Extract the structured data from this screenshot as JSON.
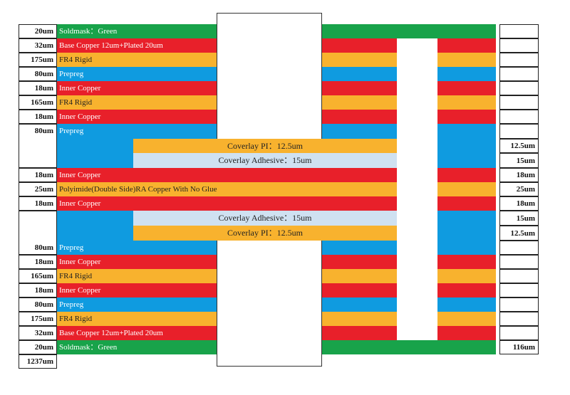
{
  "colors": {
    "soldmask": "#18a34a",
    "copper": "#e8202a",
    "fr4": "#f8b22e",
    "prepreg": "#0f9be0",
    "adhesive": "#cfe1f1"
  },
  "layers": [
    {
      "kind": "soldmask",
      "thickness": "20um",
      "label": "Soldmask：Green"
    },
    {
      "kind": "copper",
      "thickness": "32um",
      "label": "Base Copper 12um+Plated 20um"
    },
    {
      "kind": "fr4",
      "thickness": "175um",
      "label": "FR4 Rigid"
    },
    {
      "kind": "prepreg",
      "thickness": "80um",
      "label": "Prepreg"
    },
    {
      "kind": "copper",
      "thickness": "18um",
      "label": "Inner Copper"
    },
    {
      "kind": "fr4",
      "thickness": "165um",
      "label": "FR4 Rigid"
    },
    {
      "kind": "copper",
      "thickness": "18um",
      "label": "Inner Copper"
    },
    {
      "kind": "prepreg",
      "thickness": "80um",
      "label": "Prepreg"
    },
    {
      "kind": "copper",
      "thickness": "18um",
      "label": "Inner Copper"
    },
    {
      "kind": "fr4",
      "thickness": "25um",
      "label": "Polyimide(Double Side)RA Copper With No Glue"
    },
    {
      "kind": "copper",
      "thickness": "18um",
      "label": "Inner Copper"
    },
    {
      "kind": "prepreg",
      "thickness": "80um",
      "label": "Prepreg"
    },
    {
      "kind": "copper",
      "thickness": "18um",
      "label": "Inner Copper"
    },
    {
      "kind": "fr4",
      "thickness": "165um",
      "label": "FR4 Rigid"
    },
    {
      "kind": "copper",
      "thickness": "18um",
      "label": "Inner Copper"
    },
    {
      "kind": "prepreg",
      "thickness": "80um",
      "label": "Prepreg"
    },
    {
      "kind": "fr4",
      "thickness": "175um",
      "label": "FR4 Rigid"
    },
    {
      "kind": "copper",
      "thickness": "32um",
      "label": "Base Copper 12um+Plated 20um"
    },
    {
      "kind": "soldmask",
      "thickness": "20um",
      "label": "Soldmask：Green"
    }
  ],
  "coverlay_top": {
    "pi_label": "Coverlay PI：12.5um",
    "adhesive_label": "Coverlay Adhesive：15um"
  },
  "coverlay_bottom": {
    "adhesive_label": "Coverlay Adhesive：15um",
    "pi_label": "Coverlay PI：12.5um"
  },
  "flex_thickness": {
    "pi_top": "12.5um",
    "adhesive_top": "15um",
    "copper_top": "18um",
    "polyimide": "25um",
    "copper_bottom": "18um",
    "adhesive_bottom": "15um",
    "pi_bottom": "12.5um",
    "total": "116um"
  },
  "rigid_total": "1237um"
}
